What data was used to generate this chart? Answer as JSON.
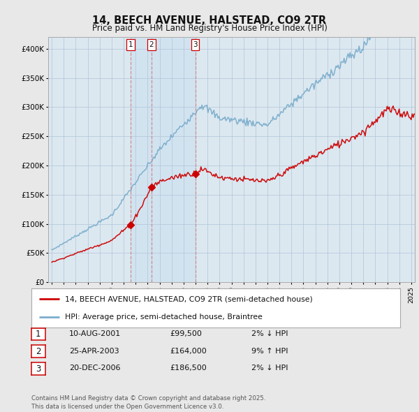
{
  "title": "14, BEECH AVENUE, HALSTEAD, CO9 2TR",
  "subtitle": "Price paid vs. HM Land Registry's House Price Index (HPI)",
  "red_label": "14, BEECH AVENUE, HALSTEAD, CO9 2TR (semi-detached house)",
  "blue_label": "HPI: Average price, semi-detached house, Braintree",
  "footer": "Contains HM Land Registry data © Crown copyright and database right 2025.\nThis data is licensed under the Open Government Licence v3.0.",
  "transactions": [
    {
      "num": 1,
      "date": "10-AUG-2001",
      "price": "£99,500",
      "change": "2% ↓ HPI",
      "year": 2001.6,
      "price_val": 99500
    },
    {
      "num": 2,
      "date": "25-APR-2003",
      "price": "£164,000",
      "change": "9% ↑ HPI",
      "year": 2003.32,
      "price_val": 164000
    },
    {
      "num": 3,
      "date": "20-DEC-2006",
      "price": "£186,500",
      "change": "2% ↓ HPI",
      "year": 2006.97,
      "price_val": 186500
    }
  ],
  "ylim": [
    0,
    420000
  ],
  "yticks": [
    0,
    50000,
    100000,
    150000,
    200000,
    250000,
    300000,
    350000,
    400000
  ],
  "ytick_labels": [
    "£0",
    "£50K",
    "£100K",
    "£150K",
    "£200K",
    "£250K",
    "£300K",
    "£350K",
    "£400K"
  ],
  "xmin": 1995,
  "xmax": 2025,
  "background_color": "#e8e8e8",
  "plot_bg": "#dce8f0",
  "grid_color": "#b0c4d8",
  "red_color": "#cc0000",
  "blue_color": "#7aadcc",
  "shade_color": "#cce0f0",
  "vline_color": "#cc8888"
}
